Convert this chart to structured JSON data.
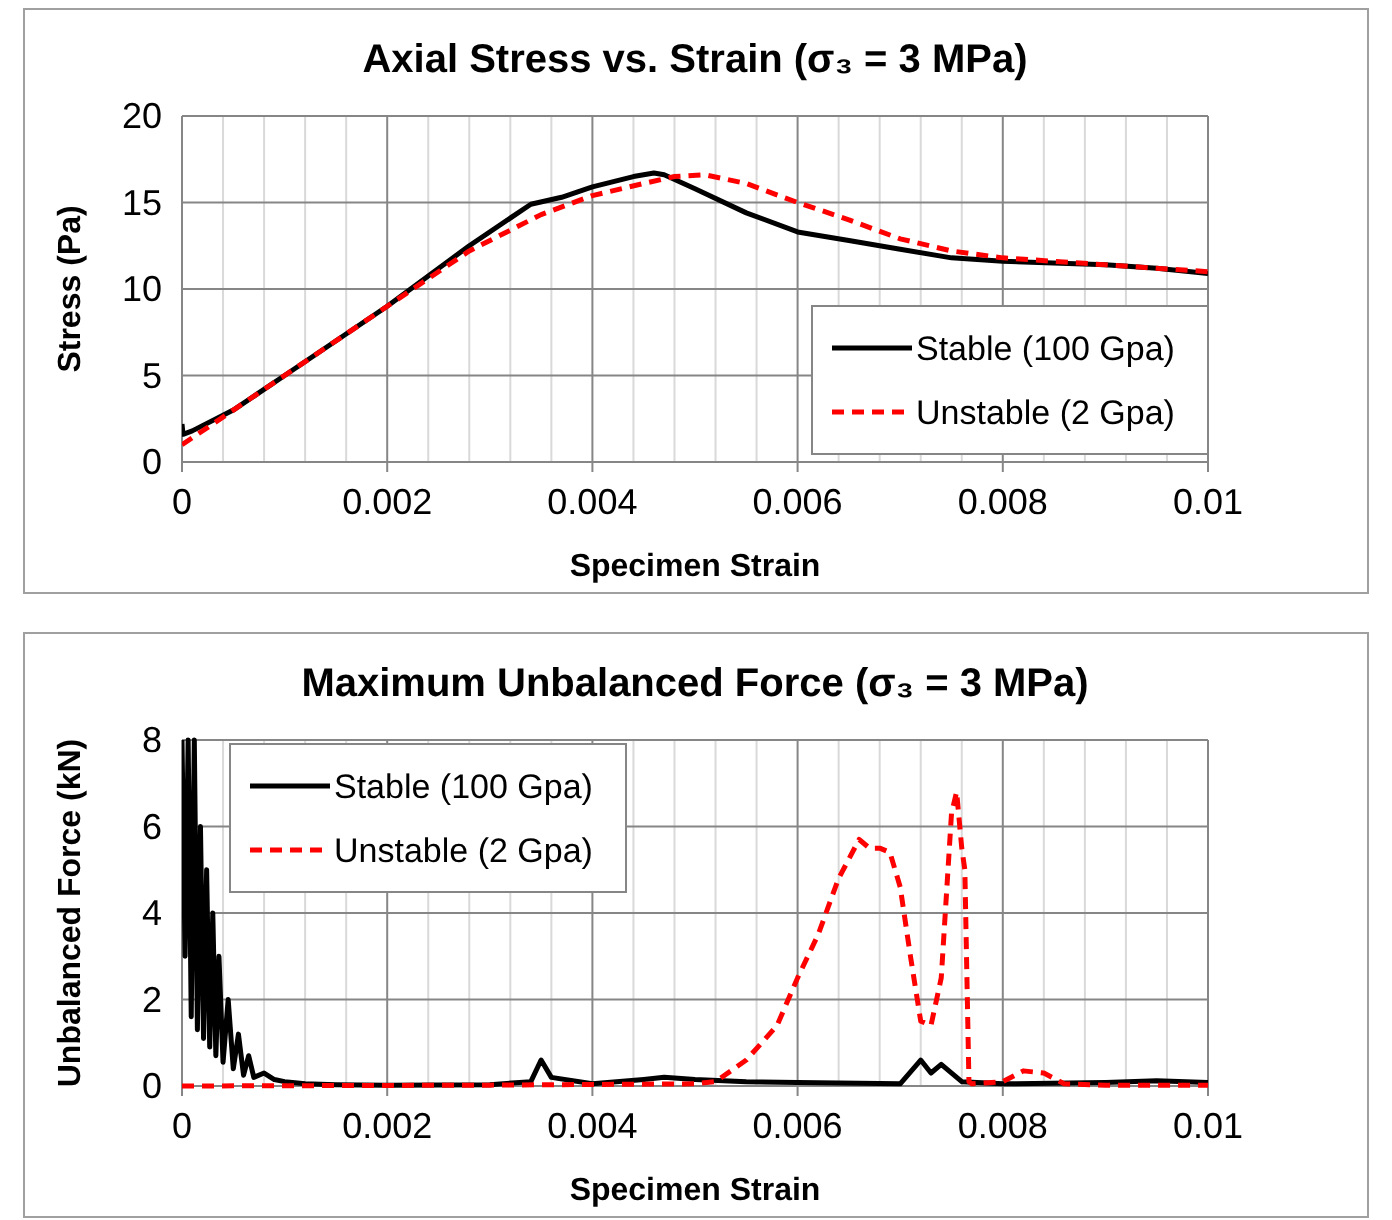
{
  "chart_data": [
    {
      "type": "line",
      "title": "Axial Stress vs. Strain (σ₃ = 3 MPa)",
      "xlabel": "Specimen Strain",
      "ylabel": "Stress (Pa)",
      "xlim": [
        0,
        0.01
      ],
      "ylim": [
        0,
        20
      ],
      "xticks": [
        0,
        {
          "value": 0.0004,
          "label": null
        },
        {
          "value": 0.0008,
          "label": null
        },
        {
          "value": 0.0012,
          "label": null
        },
        {
          "value": 0.0016,
          "label": null
        },
        0.002,
        {
          "value": 0.0024,
          "label": null
        },
        {
          "value": 0.0028,
          "label": null
        },
        {
          "value": 0.0032,
          "label": null
        },
        {
          "value": 0.0036,
          "label": null
        },
        0.004,
        {
          "value": 0.0044,
          "label": null
        },
        {
          "value": 0.0048,
          "label": null
        },
        {
          "value": 0.0052,
          "label": null
        },
        {
          "value": 0.0056,
          "label": null
        },
        0.006,
        {
          "value": 0.0064,
          "label": null
        },
        {
          "value": 0.0068,
          "label": null
        },
        {
          "value": 0.0072,
          "label": null
        },
        {
          "value": 0.0076,
          "label": null
        },
        0.008,
        {
          "value": 0.0084,
          "label": null
        },
        {
          "value": 0.0088,
          "label": null
        },
        {
          "value": 0.0092,
          "label": null
        },
        {
          "value": 0.0096,
          "label": null
        },
        0.01
      ],
      "yticks": [
        0,
        5,
        10,
        15,
        20
      ],
      "grid": true,
      "legend": "bottom right",
      "series": [
        {
          "name": "Stable (100 Gpa)",
          "color": "#000000",
          "line_style": "solid",
          "x": [
            0,
            1e-05,
            0.0001,
            0.0005,
            0.001,
            0.002,
            0.0028,
            0.0034,
            0.0037,
            0.004,
            0.0044,
            0.0046,
            0.0047,
            0.005,
            0.0055,
            0.006,
            0.0065,
            0.007,
            0.0075,
            0.008,
            0.009,
            0.0095,
            0.01
          ],
          "values": [
            2.2,
            1.6,
            1.8,
            3,
            5,
            9,
            12.5,
            14.9,
            15.3,
            15.9,
            16.5,
            16.7,
            16.6,
            15.8,
            14.4,
            13.3,
            12.8,
            12.3,
            11.8,
            11.6,
            11.4,
            11.2,
            10.9
          ]
        },
        {
          "name": "Unstable (2 Gpa)",
          "color": "#ff0000",
          "line_style": "dashed",
          "x": [
            0,
            0.0005,
            0.001,
            0.002,
            0.0028,
            0.0035,
            0.004,
            0.0045,
            0.0048,
            0.0051,
            0.0055,
            0.006,
            0.0065,
            0.007,
            0.0075,
            0.008,
            0.009,
            0.01
          ],
          "values": [
            1.0,
            3,
            5,
            9,
            12.2,
            14.3,
            15.4,
            16.1,
            16.5,
            16.6,
            16.1,
            15.0,
            14.0,
            12.9,
            12.2,
            11.8,
            11.4,
            11.0
          ]
        }
      ]
    },
    {
      "type": "line",
      "title": "Maximum Unbalanced Force (σ₃ = 3 MPa)",
      "xlabel": "Specimen Strain",
      "ylabel": "Unbalanced Force (kN)",
      "xlim": [
        0,
        0.01
      ],
      "ylim": [
        0,
        8
      ],
      "xticks": [
        0,
        {
          "value": 0.0004,
          "label": null
        },
        {
          "value": 0.0008,
          "label": null
        },
        {
          "value": 0.0012,
          "label": null
        },
        {
          "value": 0.0016,
          "label": null
        },
        0.002,
        {
          "value": 0.0024,
          "label": null
        },
        {
          "value": 0.0028,
          "label": null
        },
        {
          "value": 0.0032,
          "label": null
        },
        {
          "value": 0.0036,
          "label": null
        },
        0.004,
        {
          "value": 0.0044,
          "label": null
        },
        {
          "value": 0.0048,
          "label": null
        },
        {
          "value": 0.0052,
          "label": null
        },
        {
          "value": 0.0056,
          "label": null
        },
        0.006,
        {
          "value": 0.0064,
          "label": null
        },
        {
          "value": 0.0068,
          "label": null
        },
        {
          "value": 0.0072,
          "label": null
        },
        {
          "value": 0.0076,
          "label": null
        },
        0.008,
        {
          "value": 0.0084,
          "label": null
        },
        {
          "value": 0.0088,
          "label": null
        },
        {
          "value": 0.0092,
          "label": null
        },
        {
          "value": 0.0096,
          "label": null
        },
        0.01
      ],
      "yticks": [
        0,
        2,
        4,
        6,
        8
      ],
      "grid": true,
      "legend": "top left",
      "series": [
        {
          "name": "Stable (100 Gpa)",
          "color": "#000000",
          "line_style": "solid",
          "x": [
            0,
            3e-05,
            6e-05,
            9e-05,
            0.00012,
            0.00015,
            0.00018,
            0.00021,
            0.00024,
            0.00027,
            0.0003,
            0.00033,
            0.00036,
            0.0004,
            0.00045,
            0.0005,
            0.00055,
            0.0006,
            0.00065,
            0.0007,
            0.0008,
            0.0009,
            0.001,
            0.0012,
            0.0015,
            0.002,
            0.003,
            0.0034,
            0.0035,
            0.0036,
            0.004,
            0.0045,
            0.0047,
            0.005,
            0.0055,
            0.006,
            0.007,
            0.0072,
            0.0073,
            0.0074,
            0.0076,
            0.008,
            0.009,
            0.0095,
            0.01
          ],
          "values": [
            8,
            3,
            8,
            1.6,
            8,
            1.3,
            6,
            1.1,
            5,
            0.9,
            4,
            0.7,
            3,
            0.55,
            2,
            0.4,
            1.2,
            0.25,
            0.7,
            0.2,
            0.3,
            0.15,
            0.1,
            0.05,
            0.03,
            0.02,
            0.03,
            0.1,
            0.6,
            0.2,
            0.05,
            0.15,
            0.2,
            0.15,
            0.1,
            0.08,
            0.05,
            0.6,
            0.3,
            0.5,
            0.1,
            0.05,
            0.08,
            0.12,
            0.08
          ]
        },
        {
          "name": "Unstable (2 Gpa)",
          "color": "#ff0000",
          "line_style": "dashed",
          "x": [
            0,
            0.003,
            0.005,
            0.0052,
            0.0055,
            0.0058,
            0.006,
            0.0062,
            0.0064,
            0.0066,
            0.0067,
            0.0068,
            0.0069,
            0.007,
            0.0071,
            0.0072,
            0.0073,
            0.0074,
            0.0075,
            0.00755,
            0.0076,
            0.00763,
            0.00767,
            0.0077,
            0.008,
            0.0082,
            0.0084,
            0.0086,
            0.009,
            0.01
          ],
          "values": [
            0,
            0.02,
            0.05,
            0.1,
            0.6,
            1.4,
            2.5,
            3.5,
            4.8,
            5.7,
            5.5,
            5.5,
            5.4,
            4.6,
            3.0,
            1.5,
            1.4,
            2.5,
            6.3,
            6.8,
            5.5,
            5.0,
            0.1,
            0.05,
            0.1,
            0.35,
            0.3,
            0.05,
            0.02,
            0.02
          ]
        }
      ]
    }
  ]
}
